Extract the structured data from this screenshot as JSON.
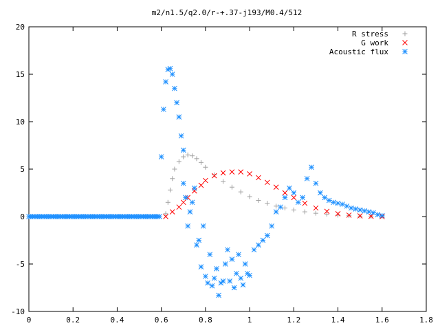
{
  "chart_data": {
    "type": "scatter",
    "title": "m2/n1.5/q2.0/r-+.37-j193/M0.4/512",
    "xlabel": "",
    "ylabel": "",
    "xlim": [
      0,
      1.8
    ],
    "ylim": [
      -10,
      20
    ],
    "xticks": [
      "0",
      "0.2",
      "0.4",
      "0.6",
      "0.8",
      "1",
      "1.2",
      "1.4",
      "1.6",
      "1.8"
    ],
    "yticks": [
      "-10",
      "-5",
      "0",
      "5",
      "10",
      "15",
      "20"
    ],
    "grid": false,
    "legend_position": "top-right",
    "series": [
      {
        "name": "R stress",
        "marker": "plus",
        "color": "#a0a0a0",
        "x": [
          0.62,
          0.63,
          0.64,
          0.65,
          0.66,
          0.68,
          0.7,
          0.72,
          0.74,
          0.76,
          0.78,
          0.8,
          0.84,
          0.88,
          0.92,
          0.96,
          1.0,
          1.04,
          1.08,
          1.12,
          1.16,
          1.2,
          1.25,
          1.3,
          1.35,
          1.4,
          1.45,
          1.5,
          1.55,
          1.6
        ],
        "y": [
          0.3,
          1.5,
          2.8,
          4.0,
          5.0,
          5.8,
          6.3,
          6.5,
          6.4,
          6.1,
          5.7,
          5.2,
          4.4,
          3.7,
          3.1,
          2.6,
          2.1,
          1.7,
          1.4,
          1.1,
          0.9,
          0.7,
          0.5,
          0.35,
          0.25,
          0.15,
          0.1,
          0.05,
          0.02,
          0.0
        ]
      },
      {
        "name": "G work",
        "marker": "cross",
        "color": "#ff0000",
        "x": [
          0.62,
          0.65,
          0.68,
          0.7,
          0.72,
          0.75,
          0.78,
          0.8,
          0.84,
          0.88,
          0.92,
          0.96,
          1.0,
          1.04,
          1.08,
          1.12,
          1.16,
          1.2,
          1.25,
          1.3,
          1.35,
          1.4,
          1.45,
          1.5,
          1.55,
          1.6
        ],
        "y": [
          0.0,
          0.5,
          1.0,
          1.5,
          2.0,
          2.7,
          3.3,
          3.8,
          4.3,
          4.6,
          4.7,
          4.7,
          4.5,
          4.1,
          3.6,
          3.1,
          2.5,
          2.0,
          1.4,
          0.9,
          0.55,
          0.3,
          0.15,
          0.07,
          0.03,
          0.0
        ]
      },
      {
        "name": "Acoustic flux",
        "marker": "star",
        "color": "#1e90ff",
        "x": [
          0.6,
          0.61,
          0.62,
          0.63,
          0.64,
          0.65,
          0.66,
          0.67,
          0.68,
          0.69,
          0.7,
          0.7,
          0.71,
          0.72,
          0.73,
          0.74,
          0.75,
          0.76,
          0.77,
          0.78,
          0.79,
          0.8,
          0.81,
          0.82,
          0.83,
          0.84,
          0.85,
          0.86,
          0.87,
          0.88,
          0.89,
          0.9,
          0.91,
          0.92,
          0.93,
          0.94,
          0.95,
          0.96,
          0.97,
          0.98,
          0.99,
          1.0,
          1.02,
          1.04,
          1.06,
          1.08,
          1.1,
          1.12,
          1.14,
          1.16,
          1.18,
          1.2,
          1.22,
          1.24,
          1.26,
          1.28,
          1.3,
          1.32,
          1.34,
          1.36,
          1.38,
          1.4,
          1.42,
          1.44,
          1.46,
          1.48,
          1.5,
          1.52,
          1.54,
          1.56,
          1.58,
          1.6
        ],
        "y": [
          6.3,
          11.3,
          14.2,
          15.5,
          15.6,
          15.0,
          13.5,
          12.0,
          10.5,
          8.5,
          7.0,
          3.5,
          2.0,
          -1.0,
          0.5,
          1.5,
          3.0,
          -3.0,
          -2.5,
          -5.3,
          -1.0,
          -6.3,
          -7.0,
          -4.0,
          -7.3,
          -6.5,
          -5.5,
          -8.3,
          -7.0,
          -6.8,
          -5.0,
          -3.5,
          -6.8,
          -4.5,
          -7.5,
          -6.0,
          -4.0,
          -6.5,
          -7.2,
          -5.0,
          -6.0,
          -6.2,
          -3.5,
          -3.0,
          -2.5,
          -2.0,
          -1.0,
          0.5,
          1.0,
          2.0,
          3.0,
          2.5,
          1.5,
          2.0,
          4.0,
          5.2,
          3.5,
          2.5,
          2.0,
          1.7,
          1.5,
          1.4,
          1.3,
          1.1,
          0.9,
          0.8,
          0.7,
          0.6,
          0.5,
          0.4,
          0.2,
          0.1
        ]
      }
    ]
  }
}
